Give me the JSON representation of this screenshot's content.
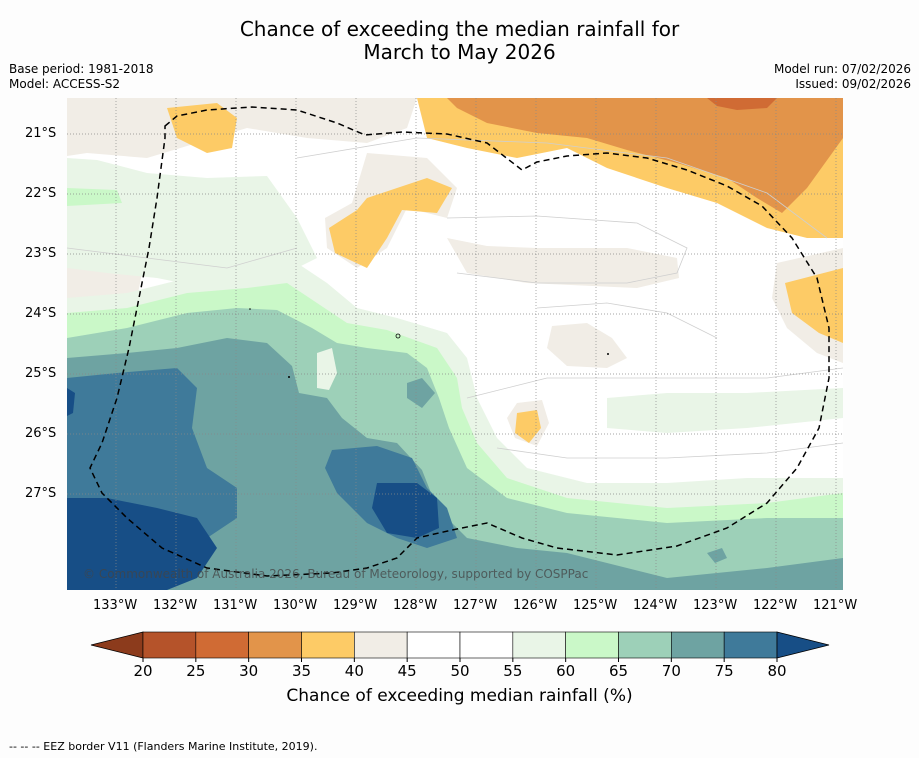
{
  "title": {
    "line1": "Chance of exceeding the median rainfall for",
    "line2": "March to May 2026"
  },
  "meta": {
    "base_period": "Base period: 1981-2018",
    "model": "Model: ACCESS-S2",
    "model_run": "Model run: 07/02/2026",
    "issued": "Issued: 09/02/2026"
  },
  "map": {
    "lat_labels": [
      "21°S",
      "22°S",
      "23°S",
      "24°S",
      "25°S",
      "26°S",
      "27°S"
    ],
    "lon_labels": [
      "133°W",
      "132°W",
      "131°W",
      "130°W",
      "129°W",
      "128°W",
      "127°W",
      "126°W",
      "125°W",
      "124°W",
      "123°W",
      "122°W",
      "121°W"
    ],
    "copyright": "© Commonwealth of Australia 2026, Bureau of Meteorology, supported by COSPPac",
    "colors": {
      "p20": "#8c3b1c",
      "p25": "#b5532a",
      "p30": "#d06b34",
      "p35": "#e2944a",
      "p40": "#fdcb66",
      "p45": "#f1ede6",
      "p50": "#ffffff",
      "p55": "#ffffff",
      "p60": "#e9f5e7",
      "p65": "#caf8c8",
      "p70": "#9dd0b8",
      "p75": "#6ea3a2",
      "p80": "#3f7a9a",
      "p85": "#174e86"
    }
  },
  "colorbar": {
    "ticks": [
      "20",
      "25",
      "30",
      "35",
      "40",
      "45",
      "50",
      "55",
      "60",
      "65",
      "70",
      "75",
      "80"
    ],
    "colors": [
      "#b5532a",
      "#d06b34",
      "#e2944a",
      "#fdcb66",
      "#f1ede6",
      "#ffffff",
      "#ffffff",
      "#e9f5e7",
      "#caf8c8",
      "#9dd0b8",
      "#6ea3a2",
      "#3f7a9a"
    ],
    "low_color": "#8c3b1c",
    "high_color": "#174e86",
    "label": "Chance of exceeding median rainfall (%)"
  },
  "footnote": "--  --  -- EEZ border V11 (Flanders Marine Institute, 2019)."
}
